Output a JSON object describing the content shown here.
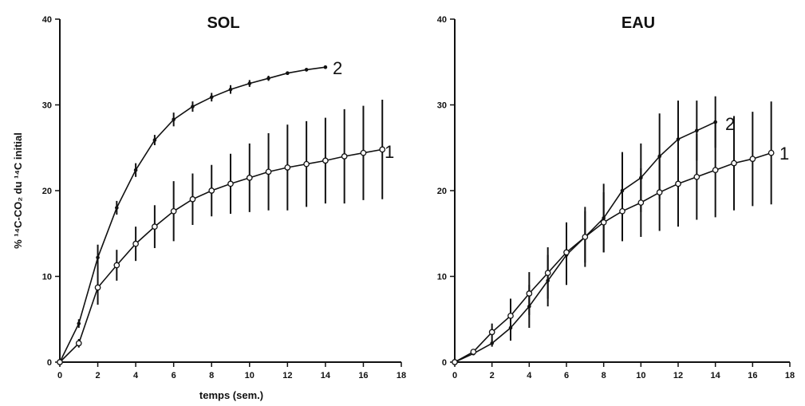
{
  "chart_data": [
    {
      "type": "line",
      "title": "SOL",
      "xlabel": "temps (sem.)",
      "ylabel": "% ¹⁴C-CO₂ du ¹⁴C initial",
      "xlim": [
        0,
        18
      ],
      "ylim": [
        0,
        40
      ],
      "x_ticks": [
        "0",
        "2",
        "4",
        "6",
        "8",
        "10",
        "12",
        "14",
        "16",
        "18"
      ],
      "y_ticks": [
        "0",
        "10",
        "20",
        "30",
        "40"
      ],
      "grid": false,
      "series": [
        {
          "name": "2",
          "marker": "filled",
          "x": [
            0,
            1,
            2,
            3,
            4,
            5,
            6,
            7,
            8,
            9,
            10,
            11,
            12,
            13,
            14
          ],
          "y": [
            0,
            4.5,
            12.2,
            18.0,
            22.4,
            25.9,
            28.3,
            29.8,
            30.9,
            31.8,
            32.5,
            33.1,
            33.7,
            34.1,
            34.4
          ],
          "err": [
            0,
            0.5,
            1.5,
            0.8,
            0.8,
            0.6,
            0.8,
            0.6,
            0.5,
            0.5,
            0.4,
            0.3,
            0.2,
            0.2,
            0.2
          ]
        },
        {
          "name": "1",
          "marker": "open",
          "x": [
            0,
            1,
            2,
            3,
            4,
            5,
            6,
            7,
            8,
            9,
            10,
            11,
            12,
            13,
            14,
            15,
            16,
            17
          ],
          "y": [
            0,
            2.2,
            8.7,
            11.3,
            13.8,
            15.8,
            17.6,
            19.0,
            20.0,
            20.8,
            21.5,
            22.2,
            22.7,
            23.1,
            23.5,
            24.0,
            24.4,
            24.8
          ],
          "err": [
            0,
            0.5,
            2.0,
            1.8,
            2.0,
            2.5,
            3.5,
            3.0,
            3.0,
            3.5,
            4.0,
            4.5,
            5.0,
            5.0,
            5.0,
            5.5,
            5.5,
            5.8
          ]
        }
      ]
    },
    {
      "type": "line",
      "title": "EAU",
      "xlabel": "",
      "ylabel": "",
      "xlim": [
        0,
        18
      ],
      "ylim": [
        0,
        40
      ],
      "x_ticks": [
        "0",
        "2",
        "4",
        "6",
        "8",
        "10",
        "12",
        "14",
        "16",
        "18"
      ],
      "y_ticks": [
        "0",
        "10",
        "20",
        "30",
        "40"
      ],
      "grid": false,
      "series": [
        {
          "name": "2",
          "marker": "filled",
          "x": [
            0,
            1,
            2,
            3,
            4,
            5,
            6,
            7,
            8,
            9,
            10,
            11,
            12,
            13,
            14
          ],
          "y": [
            0,
            1.0,
            2.2,
            4.0,
            6.5,
            9.5,
            12.5,
            14.6,
            16.8,
            20.0,
            21.5,
            24.0,
            26.0,
            27.0,
            28.0
          ],
          "err": [
            0,
            0.2,
            0.4,
            1.5,
            2.5,
            3.0,
            3.5,
            3.5,
            4.0,
            4.5,
            4.0,
            5.0,
            4.5,
            3.5,
            3.0
          ]
        },
        {
          "name": "1",
          "marker": "open",
          "x": [
            0,
            1,
            2,
            3,
            4,
            5,
            6,
            7,
            8,
            9,
            10,
            11,
            12,
            13,
            14,
            15,
            16,
            17
          ],
          "y": [
            0,
            1.2,
            3.5,
            5.4,
            8.0,
            10.4,
            12.8,
            14.6,
            16.3,
            17.6,
            18.6,
            19.8,
            20.8,
            21.6,
            22.4,
            23.2,
            23.7,
            24.4
          ],
          "err": [
            0,
            0.3,
            1.0,
            2.0,
            2.5,
            3.0,
            3.5,
            3.0,
            3.5,
            3.5,
            4.0,
            4.5,
            5.0,
            5.0,
            5.5,
            5.5,
            5.5,
            6.0
          ]
        }
      ]
    }
  ]
}
